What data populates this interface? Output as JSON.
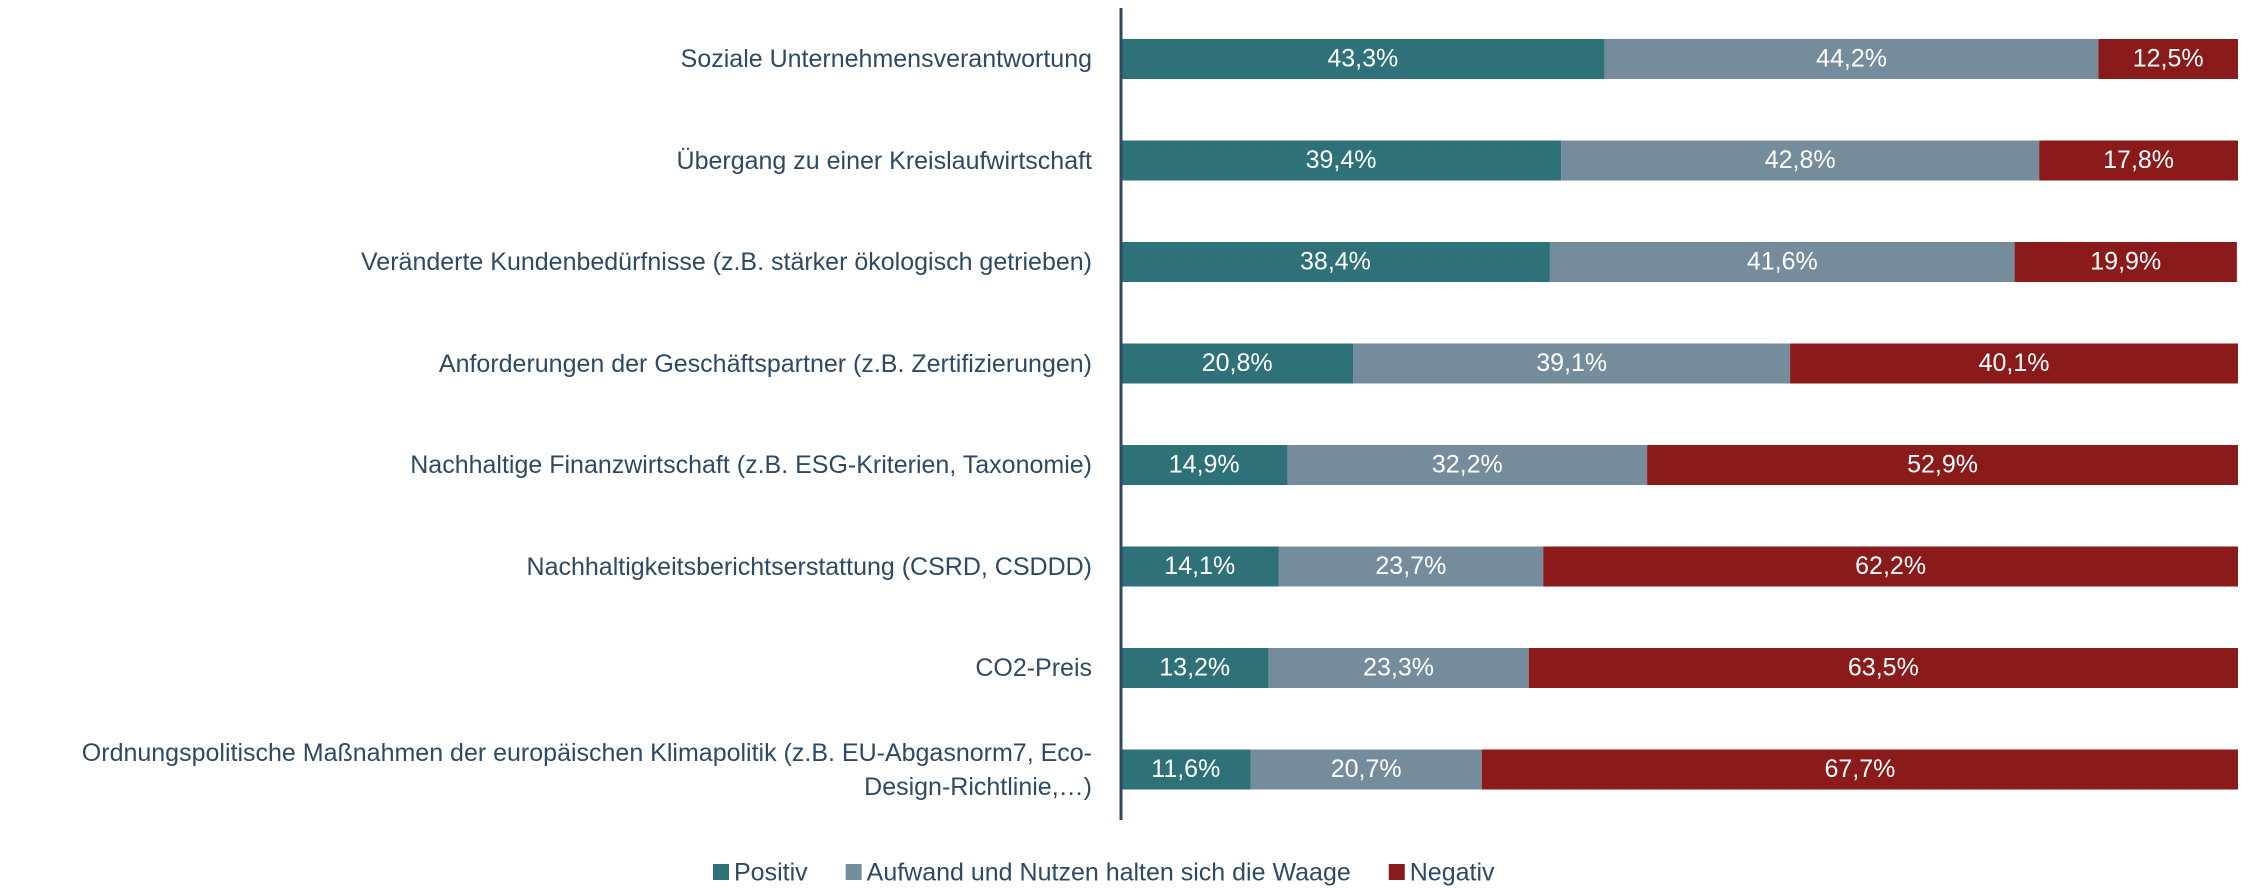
{
  "chart_data": {
    "type": "stacked-bar-horizontal",
    "categories": [
      "Soziale Unternehmensverantwortung",
      "Übergang zu einer Kreislaufwirtschaft",
      "Veränderte Kundenbedürfnisse (z.B. stärker ökologisch getrieben)",
      "Anforderungen der Geschäftspartner (z.B. Zertifizierungen)",
      "Nachhaltige Finanzwirtschaft (z.B. ESG-Kriterien, Taxonomie)",
      "Nachhaltigkeitsberichtserstattung (CSRD, CSDDD)",
      "CO2-Preis",
      "Ordnungspolitische Maßnahmen der europäischen Klimapolitik (z.B. EU-Abgasnorm7, Eco-Design-Richtlinie,…)"
    ],
    "series": [
      {
        "name": "Positiv",
        "color": "#2e7178",
        "values": [
          43.3,
          39.4,
          38.4,
          20.8,
          14.9,
          14.1,
          13.2,
          11.6
        ],
        "value_labels": [
          "43,3%",
          "39,4%",
          "38,4%",
          "20,8%",
          "14,9%",
          "14,1%",
          "13,2%",
          "11,6%"
        ]
      },
      {
        "name": "Aufwand und Nutzen halten sich die Waage",
        "color": "#758c9c",
        "values": [
          44.2,
          42.8,
          41.6,
          39.1,
          32.2,
          23.7,
          23.3,
          20.7
        ],
        "value_labels": [
          "44,2%",
          "42,8%",
          "41,6%",
          "39,1%",
          "32,2%",
          "23,7%",
          "23,3%",
          "20,7%"
        ]
      },
      {
        "name": "Negativ",
        "color": "#8b1a1a",
        "values": [
          12.5,
          17.8,
          19.9,
          40.1,
          52.9,
          62.2,
          63.5,
          67.7
        ],
        "value_labels": [
          "12,5%",
          "17,8%",
          "19,9%",
          "40,1%",
          "52,9%",
          "62,2%",
          "63,5%",
          "67,7%"
        ]
      }
    ],
    "xlim": [
      0,
      100
    ],
    "legend": "bottom"
  }
}
